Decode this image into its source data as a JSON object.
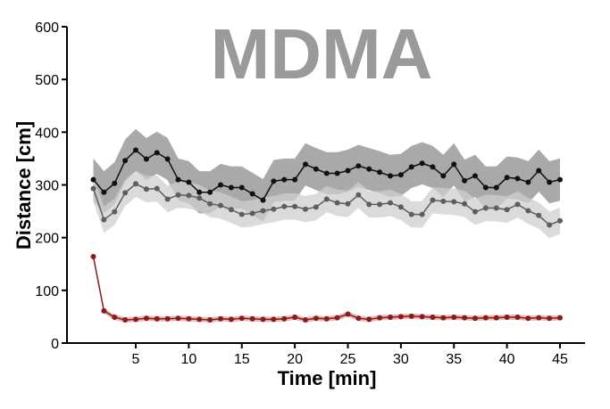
{
  "chart_data": {
    "type": "line",
    "title": "MDMA",
    "xlabel": "Time [min]",
    "ylabel": "Distance [cm]",
    "xlim": [
      0,
      46
    ],
    "ylim": [
      0,
      600
    ],
    "xticks": [
      5,
      10,
      15,
      20,
      25,
      30,
      35,
      40,
      45
    ],
    "yticks": [
      0,
      100,
      200,
      300,
      400,
      500,
      600
    ],
    "grid": false,
    "x": [
      1,
      2,
      3,
      4,
      5,
      6,
      7,
      8,
      9,
      10,
      11,
      12,
      13,
      14,
      15,
      16,
      17,
      18,
      19,
      20,
      21,
      22,
      23,
      24,
      25,
      26,
      27,
      28,
      29,
      30,
      31,
      32,
      33,
      34,
      35,
      36,
      37,
      38,
      39,
      40,
      41,
      42,
      43,
      44,
      45
    ],
    "series": [
      {
        "name": "black",
        "color": "#111111",
        "band": "#8c8c8c",
        "err": 40,
        "values": [
          310,
          286,
          303,
          346,
          366,
          349,
          361,
          349,
          310,
          305,
          286,
          286,
          300,
          295,
          295,
          283,
          271,
          307,
          310,
          310,
          339,
          330,
          322,
          322,
          327,
          336,
          330,
          324,
          317,
          319,
          334,
          341,
          334,
          317,
          339,
          308,
          317,
          295,
          295,
          314,
          312,
          305,
          327,
          305,
          310
        ]
      },
      {
        "name": "gray",
        "color": "#5e5e5e",
        "band": "#cfcfcf",
        "err": 25,
        "values": [
          293,
          234,
          249,
          285,
          302,
          292,
          293,
          273,
          281,
          280,
          275,
          264,
          261,
          253,
          244,
          246,
          251,
          254,
          259,
          259,
          254,
          258,
          273,
          266,
          264,
          281,
          263,
          263,
          266,
          258,
          244,
          244,
          271,
          269,
          268,
          264,
          249,
          256,
          256,
          253,
          263,
          251,
          242,
          224,
          232
        ]
      },
      {
        "name": "red",
        "color": "#8b1a1a",
        "band": "#d9a0a0",
        "err": 5,
        "values": [
          164,
          61,
          49,
          44,
          45,
          47,
          46,
          46,
          47,
          46,
          45,
          44,
          46,
          45,
          47,
          46,
          45,
          45,
          46,
          49,
          44,
          47,
          46,
          48,
          55,
          47,
          45,
          48,
          49,
          50,
          51,
          50,
          49,
          48,
          49,
          48,
          47,
          48,
          48,
          49,
          49,
          47,
          48,
          47,
          48
        ]
      }
    ]
  }
}
